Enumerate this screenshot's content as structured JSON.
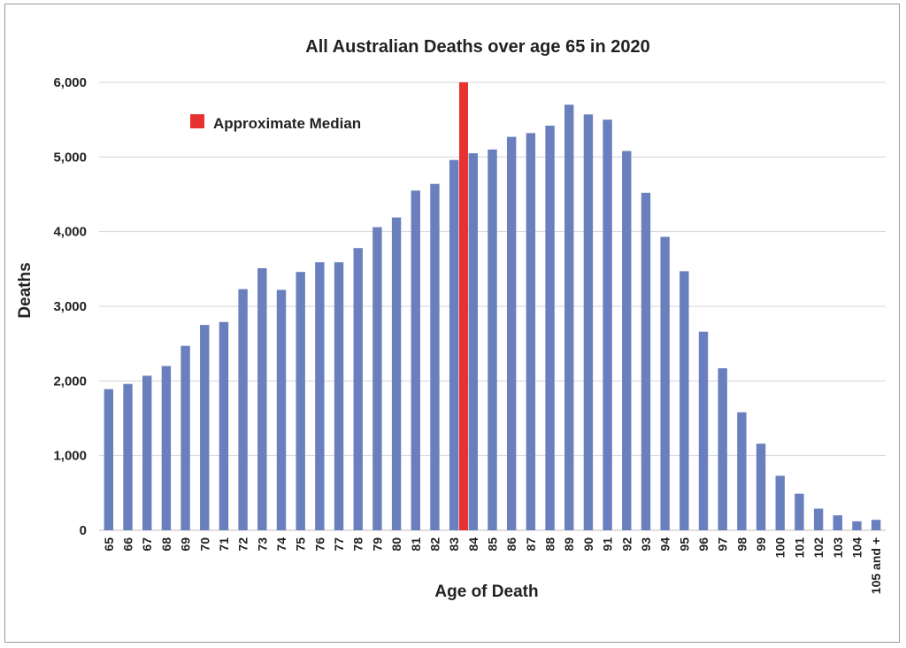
{
  "chart_data": {
    "type": "bar",
    "title": "All Australian Deaths over age 65 in 2020",
    "xlabel": "Age of Death",
    "ylabel": "Deaths",
    "ylim": [
      0,
      6000
    ],
    "yticks": [
      0,
      1000,
      2000,
      3000,
      4000,
      5000,
      6000
    ],
    "ytick_labels": [
      "0",
      "1,000",
      "2,000",
      "3,000",
      "4,000",
      "5,000",
      "6,000"
    ],
    "grid": true,
    "categories": [
      "65",
      "66",
      "67",
      "68",
      "69",
      "70",
      "71",
      "72",
      "73",
      "74",
      "75",
      "76",
      "77",
      "78",
      "79",
      "80",
      "81",
      "82",
      "83",
      "84",
      "85",
      "86",
      "87",
      "88",
      "89",
      "90",
      "91",
      "92",
      "93",
      "94",
      "95",
      "96",
      "97",
      "98",
      "99",
      "100",
      "101",
      "102",
      "103",
      "104",
      "105 and +"
    ],
    "series": [
      {
        "values": [
          1890,
          1960,
          2070,
          2200,
          2470,
          2750,
          2790,
          3230,
          3510,
          3220,
          3460,
          3590,
          3590,
          3780,
          4060,
          4190,
          4550,
          4640,
          4960,
          5050,
          5100,
          5270,
          5320,
          5420,
          5700,
          5570,
          5500,
          5080,
          4520,
          3930,
          3470,
          2660,
          2170,
          1580,
          1160,
          730,
          490,
          290,
          200,
          120,
          140
        ],
        "color": "#6a7fbd"
      }
    ],
    "annotation": {
      "label": "Approximate Median",
      "color": "#e8322f",
      "between": [
        "83",
        "84"
      ],
      "value": 6000
    },
    "legend_placement": "top-left"
  }
}
